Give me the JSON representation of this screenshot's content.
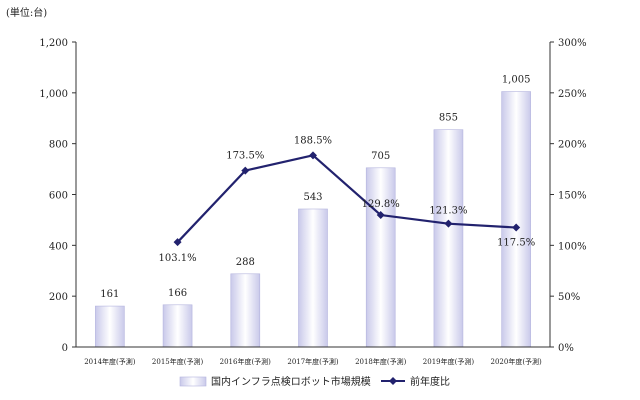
{
  "chart_data": {
    "type": "bar+line",
    "unit_label": "(単位:台)",
    "categories": [
      "2014年度(予測)",
      "2015年度(予測)",
      "2016年度(予測)",
      "2017年度(予測)",
      "2018年度(予測)",
      "2019年度(予測)",
      "2020年度(予測)"
    ],
    "left_axis": {
      "min": 0,
      "max": 1200,
      "ticks": [
        "0",
        "200",
        "400",
        "600",
        "800",
        "1,000",
        "1,200"
      ]
    },
    "right_axis": {
      "min": 0,
      "max": 300,
      "ticks": [
        "0%",
        "50%",
        "100%",
        "150%",
        "200%",
        "250%",
        "300%"
      ]
    },
    "series": [
      {
        "name": "国内インフラ点検ロボット市場規模",
        "type": "bar",
        "axis": "left",
        "values": [
          161,
          166,
          288,
          543,
          705,
          855,
          1005
        ],
        "labels": [
          "161",
          "166",
          "288",
          "543",
          "705",
          "855",
          "1,005"
        ]
      },
      {
        "name": "前年度比",
        "type": "line",
        "axis": "right",
        "values": [
          null,
          103.1,
          173.5,
          188.5,
          129.8,
          121.3,
          117.5
        ],
        "labels": [
          "",
          "103.1%",
          "173.5%",
          "188.5%",
          "129.8%",
          "121.3%",
          "117.5%"
        ]
      }
    ],
    "legend": "bottom-center",
    "grid": false
  }
}
